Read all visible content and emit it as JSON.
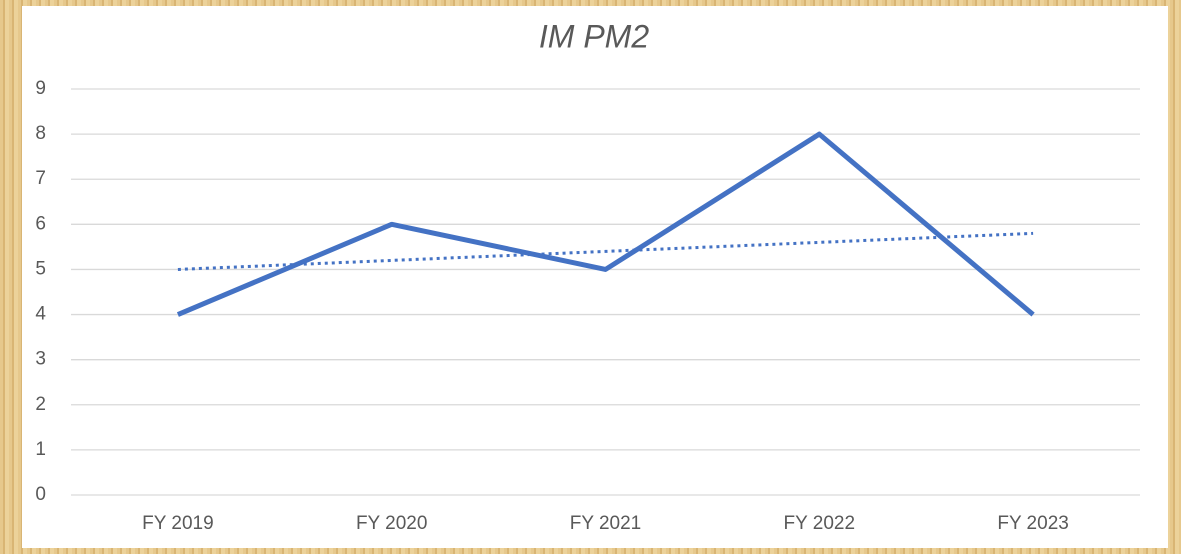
{
  "chart_data": {
    "type": "line",
    "title": "IM PM2",
    "categories": [
      "FY 2019",
      "FY 2020",
      "FY 2021",
      "FY 2022",
      "FY 2023"
    ],
    "series": [
      {
        "color": "#4472c4",
        "values": [
          4,
          6,
          5,
          8,
          4
        ]
      }
    ],
    "trendline": {
      "color": "#4472c4",
      "style": "dotted",
      "values": [
        5.0,
        5.2,
        5.4,
        5.6,
        5.8
      ]
    },
    "ylim": [
      0,
      9
    ],
    "yticks": [
      0,
      1,
      2,
      3,
      4,
      5,
      6,
      7,
      8,
      9
    ],
    "grid": true
  }
}
